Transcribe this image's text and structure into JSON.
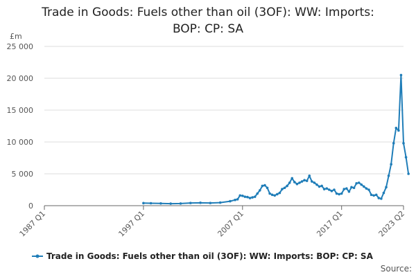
{
  "colors": {
    "series": "#1f7db8",
    "grid": "#dddddd",
    "axis": "#666666",
    "text": "#222222",
    "tick_text": "#555555"
  },
  "chart_data": {
    "type": "line",
    "title_lines": [
      "Trade in Goods: Fuels other than oil (3OF): WW: Imports:",
      "BOP: CP: SA"
    ],
    "unit": "£m",
    "x_scale": "quarters",
    "xlim": [
      "1987 Q1",
      "2023 Q2"
    ],
    "ylim": [
      0,
      25000
    ],
    "yticks": [
      0,
      5000,
      10000,
      15000,
      20000,
      25000
    ],
    "ytick_labels": [
      "0",
      "5 000",
      "10 000",
      "15 000",
      "20 000",
      "25 000"
    ],
    "xticks": [
      "1987 Q1",
      "1997 Q1",
      "2007 Q1",
      "2017 Q1",
      "2023 Q2"
    ],
    "grid": true,
    "legend": "bottom-center",
    "series": [
      {
        "name": "Trade in Goods: Fuels other than oil (3OF): WW: Imports: BOP: CP: SA",
        "points": [
          [
            "1997 Q1",
            400
          ],
          [
            "1997 Q4",
            380
          ],
          [
            "1998 Q4",
            350
          ],
          [
            "1999 Q4",
            320
          ],
          [
            "2000 Q4",
            340
          ],
          [
            "2001 Q4",
            420
          ],
          [
            "2002 Q4",
            450
          ],
          [
            "2003 Q4",
            420
          ],
          [
            "2004 Q4",
            480
          ],
          [
            "2005 Q4",
            700
          ],
          [
            "2006 Q2",
            900
          ],
          [
            "2006 Q3",
            1000
          ],
          [
            "2006 Q4",
            1600
          ],
          [
            "2007 Q1",
            1550
          ],
          [
            "2007 Q2",
            1400
          ],
          [
            "2007 Q3",
            1350
          ],
          [
            "2007 Q4",
            1200
          ],
          [
            "2008 Q1",
            1300
          ],
          [
            "2008 Q2",
            1400
          ],
          [
            "2008 Q3",
            1900
          ],
          [
            "2008 Q4",
            2400
          ],
          [
            "2009 Q1",
            3100
          ],
          [
            "2009 Q2",
            3200
          ],
          [
            "2009 Q3",
            2800
          ],
          [
            "2009 Q4",
            1900
          ],
          [
            "2010 Q1",
            1700
          ],
          [
            "2010 Q2",
            1600
          ],
          [
            "2010 Q3",
            1800
          ],
          [
            "2010 Q4",
            2000
          ],
          [
            "2011 Q1",
            2600
          ],
          [
            "2011 Q2",
            2800
          ],
          [
            "2011 Q3",
            3100
          ],
          [
            "2011 Q4",
            3600
          ],
          [
            "2012 Q1",
            4300
          ],
          [
            "2012 Q2",
            3700
          ],
          [
            "2012 Q3",
            3400
          ],
          [
            "2012 Q4",
            3600
          ],
          [
            "2013 Q1",
            3800
          ],
          [
            "2013 Q2",
            4000
          ],
          [
            "2013 Q3",
            3900
          ],
          [
            "2013 Q4",
            4700
          ],
          [
            "2014 Q1",
            3800
          ],
          [
            "2014 Q2",
            3600
          ],
          [
            "2014 Q3",
            3300
          ],
          [
            "2014 Q4",
            3000
          ],
          [
            "2015 Q1",
            3100
          ],
          [
            "2015 Q2",
            2600
          ],
          [
            "2015 Q3",
            2700
          ],
          [
            "2015 Q4",
            2500
          ],
          [
            "2016 Q1",
            2300
          ],
          [
            "2016 Q2",
            2500
          ],
          [
            "2016 Q3",
            1900
          ],
          [
            "2016 Q4",
            1800
          ],
          [
            "2017 Q1",
            1900
          ],
          [
            "2017 Q2",
            2600
          ],
          [
            "2017 Q3",
            2700
          ],
          [
            "2017 Q4",
            2200
          ],
          [
            "2018 Q1",
            2900
          ],
          [
            "2018 Q2",
            2800
          ],
          [
            "2018 Q3",
            3500
          ],
          [
            "2018 Q4",
            3600
          ],
          [
            "2019 Q1",
            3300
          ],
          [
            "2019 Q2",
            3000
          ],
          [
            "2019 Q3",
            2700
          ],
          [
            "2019 Q4",
            2500
          ],
          [
            "2020 Q1",
            1700
          ],
          [
            "2020 Q2",
            1600
          ],
          [
            "2020 Q3",
            1700
          ],
          [
            "2020 Q4",
            1200
          ],
          [
            "2021 Q1",
            1100
          ],
          [
            "2021 Q2",
            2000
          ],
          [
            "2021 Q3",
            2900
          ],
          [
            "2021 Q4",
            4700
          ],
          [
            "2022 Q1",
            6500
          ],
          [
            "2022 Q2",
            9800
          ],
          [
            "2022 Q3",
            12200
          ],
          [
            "2022 Q4",
            11800
          ],
          [
            "2023 Q1",
            20500
          ],
          [
            "2023 Q2",
            9800
          ],
          [
            "2023 Q3",
            7600
          ],
          [
            "2023 Q4",
            5000
          ]
        ]
      }
    ]
  },
  "source_label": "Source:"
}
